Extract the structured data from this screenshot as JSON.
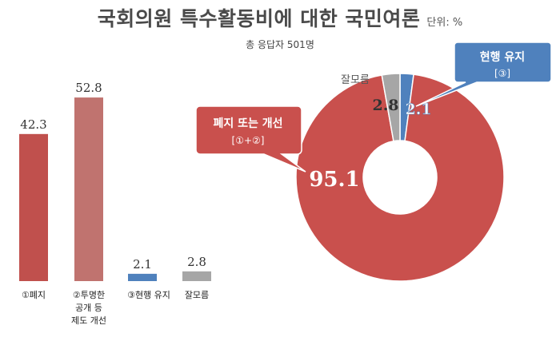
{
  "title": "국회의원 특수활동비에 대한 국민여론",
  "unit": "단위: %",
  "respondents": "총 응답자 501명",
  "colors": {
    "abolish": "#c0504d",
    "disclose": "#c0736f",
    "maintain": "#4f81bd",
    "unknown": "#a6a6a6",
    "donut_red": "#c9504d",
    "callout_blue": "#4f81bd"
  },
  "chart_data": [
    {
      "type": "bar",
      "categories": [
        "①폐지",
        "②투명한 공개 등 제도 개선",
        "③현행 유지",
        "잘모름"
      ],
      "category_lines": [
        [
          "①폐지"
        ],
        [
          "②투명한",
          "공개 등",
          "제도 개선"
        ],
        [
          "③현행 유지"
        ],
        [
          "잘모름"
        ]
      ],
      "values": [
        42.3,
        52.8,
        2.1,
        2.8
      ],
      "value_labels": [
        "42.3",
        "52.8",
        "2.1",
        "2.8"
      ],
      "ylim": [
        0,
        60
      ]
    },
    {
      "type": "pie",
      "style": "donut",
      "slices": [
        {
          "label": "폐지 또는 개선",
          "sublabel": "[①+②]",
          "value": 95.1,
          "value_label": "95.1"
        },
        {
          "label": "잘모름",
          "value": 2.8,
          "value_label": "2.8"
        },
        {
          "label": "현행 유지",
          "sublabel": "[③]",
          "value": 2.1,
          "value_label": "2.1"
        }
      ]
    }
  ]
}
